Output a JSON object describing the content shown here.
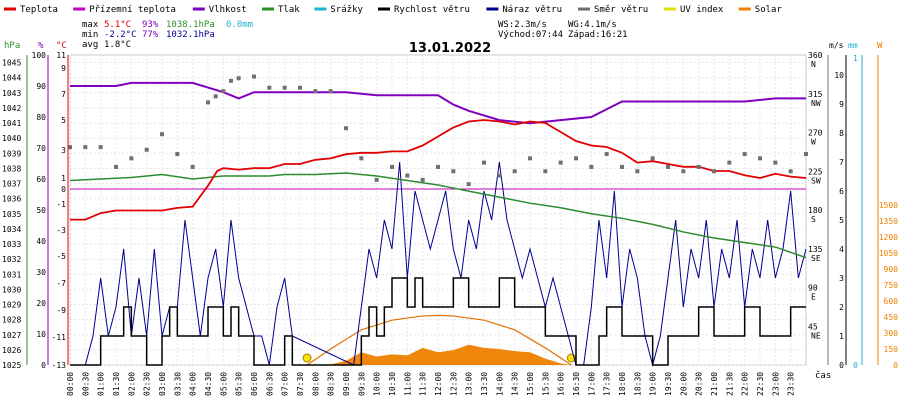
{
  "chart_data": {
    "type": "line",
    "title": "13.01.2022",
    "x_unit_label": "čas",
    "x_ticks": [
      "00:00",
      "00:30",
      "01:00",
      "01:30",
      "02:00",
      "02:30",
      "03:00",
      "03:30",
      "04:00",
      "04:30",
      "05:00",
      "05:30",
      "06:00",
      "06:30",
      "07:00",
      "07:30",
      "08:00",
      "08:30",
      "09:00",
      "09:30",
      "10:00",
      "10:30",
      "11:00",
      "11:30",
      "12:00",
      "12:30",
      "13:00",
      "13:30",
      "14:00",
      "14:30",
      "15:00",
      "15:30",
      "16:00",
      "16:30",
      "17:00",
      "17:30",
      "18:00",
      "18:30",
      "19:00",
      "19:30",
      "20:00",
      "20:30",
      "21:00",
      "21:30",
      "22:00",
      "22:30",
      "23:00",
      "23:30"
    ],
    "legend": [
      {
        "name": "Teplota",
        "color": "#e00000"
      },
      {
        "name": "Přízemní teplota",
        "color": "#c000c0"
      },
      {
        "name": "Vlhkost",
        "color": "#8000c0"
      },
      {
        "name": "Tlak",
        "color": "#2c8c2c"
      },
      {
        "name": "Srážky",
        "color": "#20b0d0"
      },
      {
        "name": "Rychlost větru",
        "color": "#000000"
      },
      {
        "name": "Náraz větru",
        "color": "#000090"
      },
      {
        "name": "Směr větru",
        "color": "#707070"
      },
      {
        "name": "UV index",
        "color": "#e0e000"
      },
      {
        "name": "Solar",
        "color": "#f08000"
      }
    ],
    "stats": {
      "max_label": "max",
      "max_temp": "5.1°C",
      "max_hum": "93%",
      "max_press": "1038.1hPa",
      "rain": "0.0mm",
      "min_label": "min",
      "min_temp": "-2.2°C",
      "min_hum": "77%",
      "min_press": "1032.1hPa",
      "avg_label": "avg",
      "avg_temp": "1.8°C"
    },
    "info": {
      "ws": "WS:2.3m/s",
      "wg": "WG:4.1m/s",
      "sunrise": "Východ:07:44",
      "sunset": "Západ:16:21"
    },
    "axes": {
      "hpa_unit": "hPa",
      "hpa_ticks": [
        "1045",
        "1044",
        "1043",
        "1042",
        "1041",
        "1040",
        "1039",
        "1038",
        "1037",
        "1036",
        "1035",
        "1034",
        "1033",
        "1032",
        "1031",
        "1030",
        "1029",
        "1028",
        "1027",
        "1026",
        "1025"
      ],
      "pct_unit": "%",
      "pct_ticks": [
        "100",
        "90",
        "80",
        "70",
        "60",
        "50",
        "40",
        "30",
        "20",
        "10",
        "0"
      ],
      "temp_unit": "°C",
      "temp_ticks": [
        "11",
        "9",
        "7",
        "5",
        "3",
        "1",
        "0",
        "-1",
        "-3",
        "-5",
        "-7",
        "-9",
        "-11",
        "-13"
      ],
      "dir_unit": "",
      "dir_ticks": [
        "360",
        "N",
        "315",
        "NW",
        "270",
        "W",
        "225",
        "SW",
        "180",
        "S",
        "135",
        "SE",
        "90",
        "E",
        "45",
        "NE"
      ],
      "ms_unit": "m/s",
      "ms_ticks": [
        "10",
        "9",
        "8",
        "7",
        "6",
        "5",
        "4",
        "3",
        "2",
        "1",
        "0"
      ],
      "mm_unit": "mm",
      "mm_ticks": [
        "1",
        "0"
      ],
      "w_unit": "W",
      "w_ticks": [
        "1500",
        "1350",
        "1200",
        "1050",
        "900",
        "750",
        "600",
        "450",
        "300",
        "150",
        "0"
      ]
    },
    "temperature": {
      "times": [
        0,
        0.5,
        1,
        1.5,
        2,
        2.5,
        3,
        3.5,
        4,
        4.5,
        4.8,
        5,
        5.5,
        6,
        6.5,
        7,
        7.5,
        8,
        8.5,
        9,
        9.5,
        10,
        10.5,
        11,
        11.5,
        12,
        12.5,
        13,
        13.5,
        14,
        14.5,
        15,
        15.5,
        16,
        16.5,
        17,
        17.5,
        18,
        18.5,
        19,
        19.5,
        20,
        20.5,
        21,
        21.5,
        22,
        22.5,
        23,
        23.5,
        24
      ],
      "values": [
        -2.2,
        -2.2,
        -1.7,
        -1.5,
        -1.5,
        -1.5,
        -1.5,
        -1.3,
        -1.2,
        0.3,
        1.5,
        1.7,
        1.6,
        1.7,
        1.7,
        2.0,
        2.0,
        2.3,
        2.4,
        2.7,
        2.8,
        2.8,
        2.9,
        2.9,
        3.3,
        3.9,
        4.5,
        4.9,
        5.0,
        4.9,
        4.7,
        4.9,
        4.8,
        4.2,
        3.6,
        3.3,
        3.2,
        2.8,
        2.1,
        2.2,
        2.0,
        1.8,
        1.8,
        1.5,
        1.5,
        1.2,
        1.0,
        1.3,
        1.1,
        1.0
      ]
    },
    "ground_temperature": {
      "times": [
        0,
        24
      ],
      "values": [
        0,
        0
      ]
    },
    "humidity": {
      "times": [
        0,
        1.5,
        2,
        3,
        4,
        5,
        5.5,
        6,
        7,
        8,
        9,
        10,
        11,
        12,
        12.5,
        13,
        14,
        15,
        16,
        17,
        18,
        19,
        20,
        21,
        22,
        23,
        23.5,
        24
      ],
      "values": [
        90,
        90,
        91,
        91,
        91,
        88,
        86,
        88,
        88,
        88,
        88,
        87,
        87,
        87,
        84,
        82,
        79,
        78,
        79,
        80,
        85,
        85,
        85,
        85,
        85,
        86,
        86,
        86
      ]
    },
    "pressure": {
      "times": [
        0,
        1,
        2,
        3,
        4,
        4.5,
        5,
        5.5,
        6,
        6.5,
        7,
        8,
        9,
        9.5,
        10,
        11,
        12,
        12.5,
        13,
        14,
        15,
        16,
        17,
        18,
        19,
        20,
        21,
        22,
        23,
        24
      ],
      "values": [
        1037.2,
        1037.3,
        1037.4,
        1037.6,
        1037.3,
        1037.4,
        1037.5,
        1037.5,
        1037.5,
        1037.5,
        1037.6,
        1037.6,
        1037.7,
        1037.6,
        1037.5,
        1037.2,
        1036.9,
        1036.7,
        1036.5,
        1036.1,
        1035.7,
        1035.4,
        1035.0,
        1034.7,
        1034.3,
        1033.8,
        1033.4,
        1033.1,
        1032.8,
        1032.1
      ]
    },
    "wind_speed": {
      "times": [
        0,
        0.75,
        1,
        1.5,
        1.75,
        2,
        2.5,
        3,
        3.25,
        3.5,
        4,
        4.5,
        5,
        5.25,
        5.5,
        6,
        6.5,
        7,
        7.25,
        9.25,
        9.5,
        9.75,
        10,
        10.25,
        10.5,
        11,
        11.25,
        11.5,
        12,
        12.5,
        13,
        13.5,
        14,
        14.5,
        15,
        15.5,
        16,
        16.5,
        17,
        17.25,
        17.5,
        18,
        18.5,
        19,
        19.5,
        20,
        20.5,
        21,
        21.5,
        22,
        22.5,
        23,
        23.5,
        24
      ],
      "values": [
        0,
        0,
        1,
        1,
        2,
        1,
        0,
        1,
        2,
        1,
        1,
        2,
        1,
        2,
        1,
        0,
        0,
        1,
        0,
        0,
        1,
        2,
        1,
        2,
        3,
        2,
        3,
        2,
        2,
        3,
        2,
        2,
        3,
        2,
        2,
        1,
        1,
        0,
        0,
        1,
        2,
        1,
        1,
        0,
        1,
        1,
        2,
        1,
        1,
        2,
        1,
        1,
        2,
        2
      ]
    },
    "wind_gust": {
      "times": [
        0,
        0.5,
        0.75,
        1,
        1.25,
        1.5,
        1.75,
        2,
        2.25,
        2.5,
        2.75,
        3,
        3.25,
        3.5,
        3.75,
        4,
        4.25,
        4.5,
        4.75,
        5,
        5.25,
        5.5,
        5.75,
        6,
        6.25,
        6.5,
        6.75,
        7,
        7.25,
        9.25,
        9.5,
        9.75,
        10,
        10.25,
        10.5,
        10.75,
        11,
        11.25,
        11.5,
        11.75,
        12,
        12.25,
        12.5,
        12.75,
        13,
        13.25,
        13.5,
        13.75,
        14,
        14.25,
        14.5,
        14.75,
        15,
        15.25,
        15.5,
        15.75,
        16,
        16.25,
        16.5,
        16.75,
        17,
        17.25,
        17.5,
        17.75,
        18,
        18.25,
        18.5,
        18.75,
        19,
        19.25,
        19.5,
        19.75,
        20,
        20.25,
        20.5,
        20.75,
        21,
        21.25,
        21.5,
        21.75,
        22,
        22.25,
        22.5,
        22.75,
        23,
        23.25,
        23.5,
        23.75,
        24
      ],
      "values": [
        0,
        0,
        1,
        3,
        1,
        2,
        4,
        1,
        3,
        1,
        4,
        1,
        2,
        2,
        5,
        3,
        1,
        3,
        4,
        2,
        5,
        3,
        2,
        1,
        1,
        0,
        2,
        3,
        1,
        0,
        2,
        4,
        3,
        5,
        4,
        7,
        3,
        6,
        5,
        4,
        5,
        6,
        4,
        3,
        5,
        4,
        6,
        5,
        7,
        5,
        4,
        3,
        4,
        3,
        2,
        3,
        2,
        1,
        0,
        0,
        2,
        5,
        3,
        6,
        2,
        4,
        3,
        1,
        0,
        1,
        3,
        5,
        2,
        4,
        3,
        5,
        2,
        4,
        3,
        5,
        2,
        4,
        3,
        5,
        3,
        4,
        6,
        3,
        4
      ]
    },
    "wind_direction_samples": [
      {
        "t": 0.0,
        "deg": 253
      },
      {
        "t": 0.5,
        "deg": 253
      },
      {
        "t": 1.0,
        "deg": 253
      },
      {
        "t": 1.5,
        "deg": 230
      },
      {
        "t": 2.0,
        "deg": 240
      },
      {
        "t": 2.5,
        "deg": 250
      },
      {
        "t": 3.0,
        "deg": 268
      },
      {
        "t": 3.5,
        "deg": 245
      },
      {
        "t": 4.0,
        "deg": 230
      },
      {
        "t": 4.5,
        "deg": 305
      },
      {
        "t": 4.75,
        "deg": 312
      },
      {
        "t": 5.0,
        "deg": 318
      },
      {
        "t": 5.25,
        "deg": 330
      },
      {
        "t": 5.5,
        "deg": 333
      },
      {
        "t": 6.0,
        "deg": 335
      },
      {
        "t": 6.5,
        "deg": 322
      },
      {
        "t": 7.0,
        "deg": 322
      },
      {
        "t": 7.5,
        "deg": 322
      },
      {
        "t": 8.0,
        "deg": 318
      },
      {
        "t": 8.5,
        "deg": 318
      },
      {
        "t": 9.0,
        "deg": 275
      },
      {
        "t": 9.5,
        "deg": 240
      },
      {
        "t": 10.0,
        "deg": 215
      },
      {
        "t": 10.5,
        "deg": 230
      },
      {
        "t": 11.0,
        "deg": 220
      },
      {
        "t": 11.5,
        "deg": 215
      },
      {
        "t": 12.0,
        "deg": 230
      },
      {
        "t": 12.5,
        "deg": 225
      },
      {
        "t": 13.0,
        "deg": 210
      },
      {
        "t": 13.5,
        "deg": 235
      },
      {
        "t": 14.0,
        "deg": 220
      },
      {
        "t": 14.5,
        "deg": 225
      },
      {
        "t": 15.0,
        "deg": 240
      },
      {
        "t": 15.5,
        "deg": 225
      },
      {
        "t": 16.0,
        "deg": 235
      },
      {
        "t": 16.5,
        "deg": 240
      },
      {
        "t": 17.0,
        "deg": 230
      },
      {
        "t": 17.5,
        "deg": 245
      },
      {
        "t": 18.0,
        "deg": 230
      },
      {
        "t": 18.5,
        "deg": 225
      },
      {
        "t": 19.0,
        "deg": 240
      },
      {
        "t": 19.5,
        "deg": 230
      },
      {
        "t": 20.0,
        "deg": 225
      },
      {
        "t": 20.5,
        "deg": 230
      },
      {
        "t": 21.0,
        "deg": 225
      },
      {
        "t": 21.5,
        "deg": 235
      },
      {
        "t": 22.0,
        "deg": 245
      },
      {
        "t": 22.5,
        "deg": 240
      },
      {
        "t": 23.0,
        "deg": 235
      },
      {
        "t": 23.5,
        "deg": 225
      },
      {
        "t": 24.0,
        "deg": 245
      }
    ],
    "solar": {
      "times": [
        7.7,
        8.5,
        9.0,
        9.5,
        10.0,
        10.5,
        11.0,
        11.5,
        12.0,
        12.5,
        13.0,
        13.5,
        14.0,
        14.5,
        15.0,
        15.5,
        16.0,
        16.35
      ],
      "values": [
        0,
        5,
        40,
        120,
        80,
        100,
        90,
        160,
        120,
        140,
        190,
        160,
        150,
        130,
        120,
        60,
        15,
        0
      ]
    },
    "solar_theoretical": {
      "times": [
        7.73,
        8.5,
        9.5,
        10.5,
        11.5,
        12.05,
        12.5,
        13.5,
        14.5,
        15.5,
        16.35
      ],
      "values": [
        0,
        150,
        330,
        420,
        460,
        465,
        460,
        420,
        330,
        160,
        0
      ]
    },
    "sunrise_time": 7.73,
    "sunset_time": 16.35
  }
}
